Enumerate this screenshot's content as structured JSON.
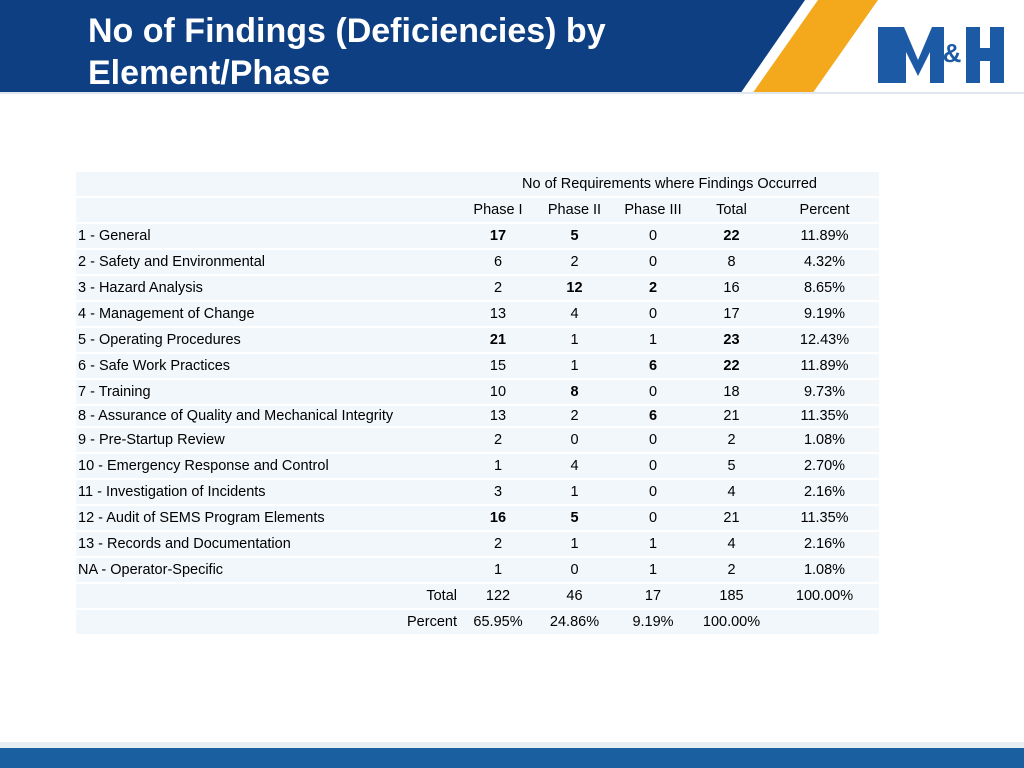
{
  "title": "No of Findings (Deficiencies) by Element/Phase",
  "logo": {
    "text": "M&H",
    "icon": "m-and-h-logo"
  },
  "colors": {
    "header_blue": "#0d3f82",
    "accent_orange": "#f4a81c",
    "cell_bg": "#f2f7fb",
    "footer_blue": "#1a5fa0"
  },
  "table": {
    "group_header": "No of Requirements where Findings Occurred",
    "columns": [
      "Phase I",
      "Phase II",
      "Phase III",
      "Total",
      "Percent"
    ],
    "rows": [
      {
        "element": "1 - General",
        "phase1": "17",
        "phase2": "5",
        "phase3": "0",
        "total": "22",
        "percent": "11.89%"
      },
      {
        "element": "2 - Safety and Environmental",
        "phase1": "6",
        "phase2": "2",
        "phase3": "0",
        "total": "8",
        "percent": "4.32%"
      },
      {
        "element": "3 - Hazard Analysis",
        "phase1": "2",
        "phase2": "12",
        "phase3": "2",
        "total": "16",
        "percent": "8.65%"
      },
      {
        "element": "4 - Management of Change",
        "phase1": "13",
        "phase2": "4",
        "phase3": "0",
        "total": "17",
        "percent": "9.19%"
      },
      {
        "element": "5 - Operating Procedures",
        "phase1": "21",
        "phase2": "1",
        "phase3": "1",
        "total": "23",
        "percent": "12.43%"
      },
      {
        "element": "6 - Safe Work Practices",
        "phase1": "15",
        "phase2": "1",
        "phase3": "6",
        "total": "22",
        "percent": "11.89%"
      },
      {
        "element": "7 - Training",
        "phase1": "10",
        "phase2": "8",
        "phase3": "0",
        "total": "18",
        "percent": "9.73%"
      },
      {
        "element": "8 - Assurance of Quality and Mechanical Integrity",
        "phase1": "13",
        "phase2": "2",
        "phase3": "6",
        "total": "21",
        "percent": "11.35%"
      },
      {
        "element": "9 - Pre-Startup Review",
        "phase1": "2",
        "phase2": "0",
        "phase3": "0",
        "total": "2",
        "percent": "1.08%"
      },
      {
        "element": "10 - Emergency Response and Control",
        "phase1": "1",
        "phase2": "4",
        "phase3": "0",
        "total": "5",
        "percent": "2.70%"
      },
      {
        "element": "11 - Investigation of Incidents",
        "phase1": "3",
        "phase2": "1",
        "phase3": "0",
        "total": "4",
        "percent": "2.16%"
      },
      {
        "element": "12 - Audit of SEMS Program Elements",
        "phase1": "16",
        "phase2": "5",
        "phase3": "0",
        "total": "21",
        "percent": "11.35%"
      },
      {
        "element": "13 - Records and Documentation",
        "phase1": "2",
        "phase2": "1",
        "phase3": "1",
        "total": "4",
        "percent": "2.16%"
      },
      {
        "element": "NA - Operator-Specific",
        "phase1": "1",
        "phase2": "0",
        "phase3": "1",
        "total": "2",
        "percent": "1.08%"
      }
    ],
    "total_row": {
      "label": "Total",
      "phase1": "122",
      "phase2": "46",
      "phase3": "17",
      "total": "185",
      "percent": "100.00%"
    },
    "percent_row": {
      "label": "Percent",
      "phase1": "65.95%",
      "phase2": "24.86%",
      "phase3": "9.19%",
      "total": "100.00%"
    }
  }
}
